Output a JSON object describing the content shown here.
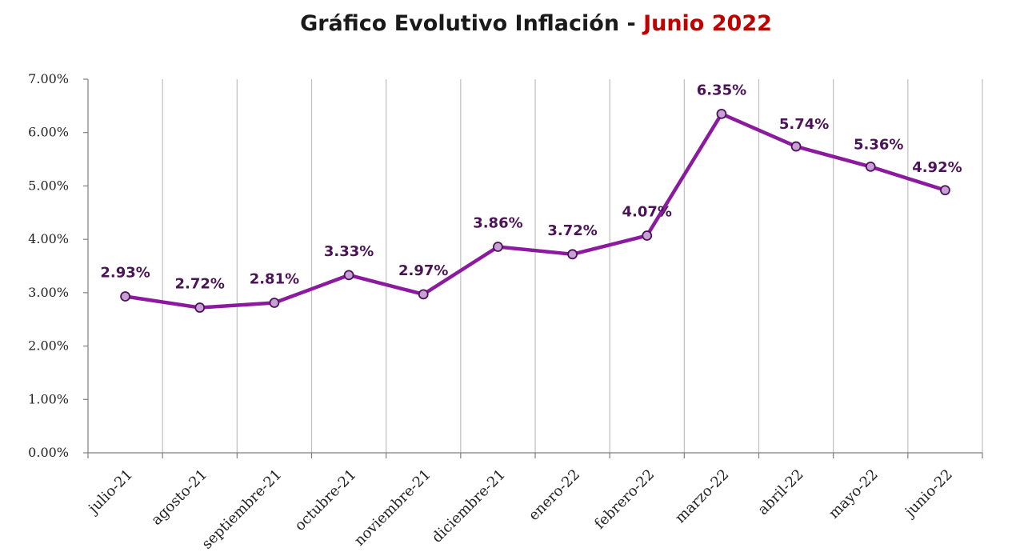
{
  "title": {
    "main": "Gráfico Evolutivo Inflación - ",
    "highlight": "Junio 2022"
  },
  "colors": {
    "line": "#8b1a9e",
    "marker_fill": "#c9a0d6",
    "marker_stroke": "#4b1457",
    "label": "#4b1457",
    "highlight": "#c00000",
    "grid": "#bfbfbf"
  },
  "chart_data": {
    "type": "line",
    "title": "Gráfico Evolutivo Inflación - Junio 2022",
    "xlabel": "",
    "ylabel": "",
    "categories": [
      "julio-21",
      "agosto-21",
      "septiembre-21",
      "octubre-21",
      "noviembre-21",
      "diciembre-21",
      "enero-22",
      "febrero-22",
      "marzo-22",
      "abril-22",
      "mayo-22",
      "junio-22"
    ],
    "series": [
      {
        "name": "Inflación",
        "values": [
          2.93,
          2.72,
          2.81,
          3.33,
          2.97,
          3.86,
          3.72,
          4.07,
          6.35,
          5.74,
          5.36,
          4.92
        ],
        "labels": [
          "2.93%",
          "2.72%",
          "2.81%",
          "3.33%",
          "2.97%",
          "3.86%",
          "3.72%",
          "4.07%",
          "6.35%",
          "5.74%",
          "5.36%",
          "4.92%"
        ]
      }
    ],
    "ylim": [
      0,
      7
    ],
    "yticks": [
      "0.00%",
      "1.00%",
      "2.00%",
      "3.00%",
      "4.00%",
      "5.00%",
      "6.00%",
      "7.00%"
    ],
    "grid": "vertical",
    "legend": "none"
  }
}
